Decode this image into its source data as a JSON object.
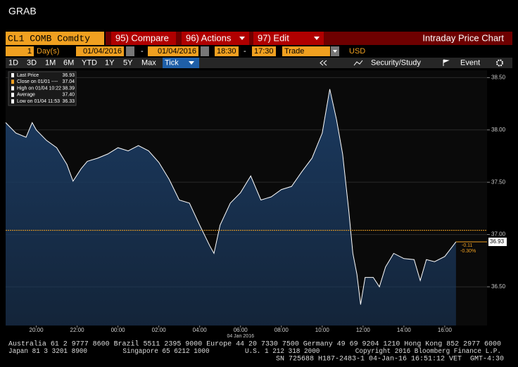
{
  "window": {
    "title": "GRAB"
  },
  "command_bar": {
    "ticker": "CL1 COMB Comdty",
    "buttons": [
      "95) Compare",
      "96) Actions",
      "97) Edit"
    ],
    "page_title": "Intraday Price Chart"
  },
  "settings": {
    "period": "1",
    "period_unit": "Day(s)",
    "start_date": "01/04/2016",
    "date_sep": "-",
    "end_date": "01/04/2016",
    "start_time": "18:30",
    "time_sep": "-",
    "end_time": "17:30",
    "field": "Trade",
    "currency": "USD"
  },
  "tabs": [
    "1D",
    "3D",
    "1M",
    "6M",
    "YTD",
    "1Y",
    "5Y",
    "Max",
    "Tick"
  ],
  "active_tab": "Tick",
  "toolbar_right": [
    "Security/Study",
    "Event"
  ],
  "chart_data": {
    "type": "area",
    "stats": {
      "labels": [
        "Last Price",
        "Close on 01/01 ----",
        "High on 01/04 10:22",
        "Average",
        "Low on 01/04 11:53"
      ],
      "values": [
        36.93,
        37.04,
        38.39,
        37.4,
        36.33
      ],
      "value_labels": [
        "36.93",
        "37.04",
        "38.39",
        "37.40",
        "36.33"
      ]
    },
    "change": {
      "values": [
        -0.11,
        -0.3
      ],
      "value_labels": [
        "-0.11",
        "-0.30%"
      ]
    },
    "x_date_label": "04 Jan 2016",
    "x": [
      0,
      0.5,
      1,
      1.3,
      1.5,
      2,
      2.5,
      3,
      3.3,
      3.7,
      4,
      4.5,
      5,
      5.5,
      6,
      6.5,
      7,
      7.5,
      8,
      8.5,
      9,
      9.5,
      10,
      10.2,
      10.5,
      11,
      11.5,
      12,
      12.5,
      13,
      13.5,
      14,
      14.5,
      15,
      15.5,
      15.87,
      16.2,
      16.5,
      16.8,
      17,
      17.2,
      17.38,
      17.6,
      18,
      18.3,
      18.6,
      19,
      19.5,
      20,
      20.3,
      20.6,
      21,
      21.5,
      22.05
    ],
    "series": [
      {
        "name": "Last Price",
        "color": "#ffffff",
        "values": [
          38.07,
          37.97,
          37.93,
          38.07,
          38.0,
          37.9,
          37.83,
          37.67,
          37.51,
          37.63,
          37.7,
          37.73,
          37.77,
          37.83,
          37.8,
          37.85,
          37.8,
          37.69,
          37.53,
          37.33,
          37.3,
          37.09,
          36.89,
          36.82,
          37.09,
          37.3,
          37.4,
          37.56,
          37.33,
          37.36,
          37.43,
          37.46,
          37.6,
          37.73,
          37.97,
          38.39,
          38.1,
          37.77,
          37.23,
          36.82,
          36.62,
          36.33,
          36.59,
          36.59,
          36.5,
          36.69,
          36.82,
          36.77,
          36.76,
          36.56,
          36.76,
          36.74,
          36.79,
          36.93
        ]
      }
    ],
    "close_color": "#f0a020",
    "area_color": "#1b3a60",
    "xlim": [
      0,
      23.57
    ],
    "xticks": [
      {
        "value": 1.5,
        "label": "20:00"
      },
      {
        "value": 3.5,
        "label": "22:00"
      },
      {
        "value": 5.5,
        "label": "00:00"
      },
      {
        "value": 7.5,
        "label": "02:00"
      },
      {
        "value": 9.5,
        "label": "04:00"
      },
      {
        "value": 11.5,
        "label": "06:00"
      },
      {
        "value": 13.5,
        "label": "08:00"
      },
      {
        "value": 15.5,
        "label": "10:00"
      },
      {
        "value": 17.5,
        "label": "12:00"
      },
      {
        "value": 19.5,
        "label": "14:00"
      },
      {
        "value": 21.5,
        "label": "16:00"
      }
    ],
    "ylim": [
      36.13,
      38.57
    ],
    "yticks": [
      {
        "value": 36.5,
        "label": "36.50"
      },
      {
        "value": 37,
        "label": "37.00"
      },
      {
        "value": 37.5,
        "label": "37.50"
      },
      {
        "value": 38,
        "label": "38.00"
      },
      {
        "value": 38.5,
        "label": "38.50"
      }
    ],
    "grid": true
  },
  "footer": {
    "lines": [
      "Australia 61 2 9777 8600 Brazil 5511 2395 9000 Europe 44 20 7330 7500 Germany 49 69 9204 1210 Hong Kong 852 2977 6000",
      "Japan 81 3 3201 8900         Singapore 65 6212 1000         U.S. 1 212 318 2000         Copyright 2016 Bloomberg Finance L.P.",
      "SN 725688 H187-2483-1 04-Jan-16 16:51:12 VET  GMT-4:30"
    ]
  }
}
